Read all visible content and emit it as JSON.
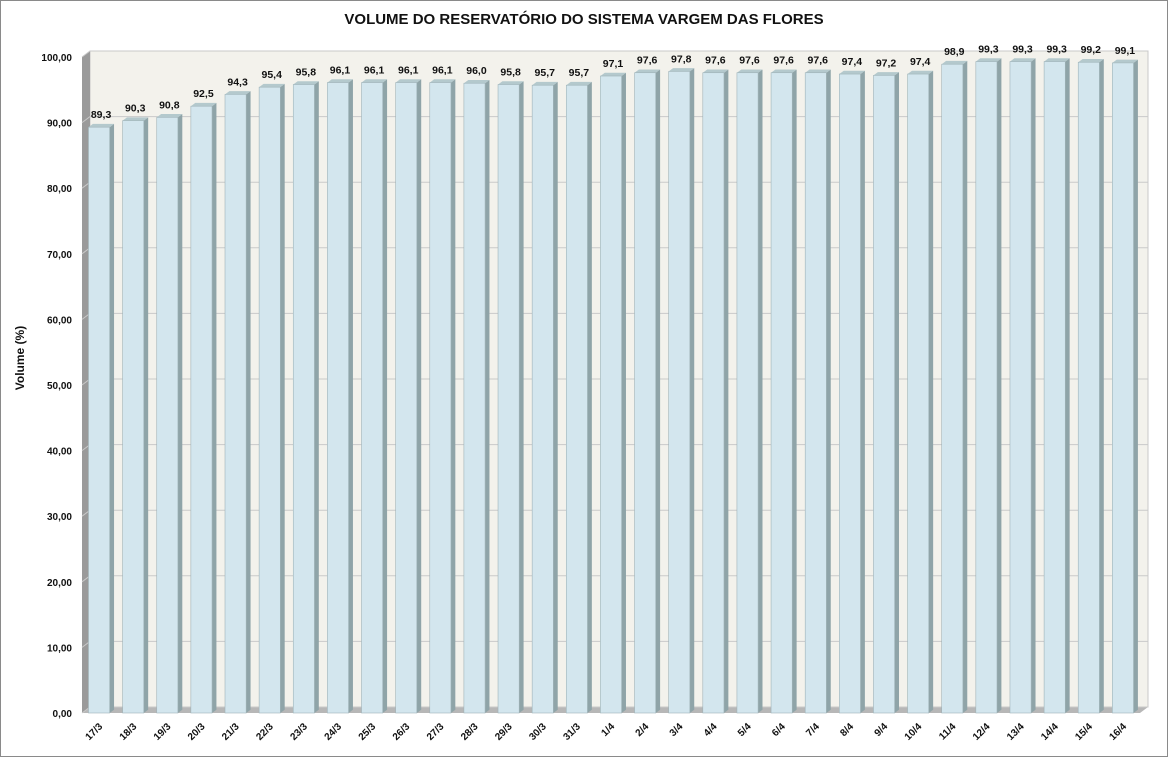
{
  "chart_data": {
    "type": "bar",
    "title": "VOLUME DO RESERVATÓRIO DO SISTEMA VARGEM DAS FLORES",
    "xlabel": "",
    "ylabel": "Volume (%)",
    "ylim": [
      0,
      100
    ],
    "yticks": [
      "0,00",
      "10,00",
      "20,00",
      "30,00",
      "40,00",
      "50,00",
      "60,00",
      "70,00",
      "80,00",
      "90,00",
      "100,00"
    ],
    "categories": [
      "17/3",
      "18/3",
      "19/3",
      "20/3",
      "21/3",
      "22/3",
      "23/3",
      "24/3",
      "25/3",
      "26/3",
      "27/3",
      "28/3",
      "29/3",
      "30/3",
      "31/3",
      "1/4",
      "2/4",
      "3/4",
      "4/4",
      "5/4",
      "6/4",
      "7/4",
      "8/4",
      "9/4",
      "10/4",
      "11/4",
      "12/4",
      "13/4",
      "14/4",
      "15/4",
      "16/4"
    ],
    "values": [
      89.3,
      90.3,
      90.8,
      92.5,
      94.3,
      95.4,
      95.8,
      96.1,
      96.1,
      96.1,
      96.1,
      96.0,
      95.8,
      95.7,
      95.7,
      97.1,
      97.6,
      97.8,
      97.6,
      97.6,
      97.6,
      97.6,
      97.4,
      97.2,
      97.4,
      98.9,
      99.3,
      99.3,
      99.3,
      99.2,
      99.1
    ],
    "data_labels": [
      "89,3",
      "90,3",
      "90,8",
      "92,5",
      "94,3",
      "95,4",
      "95,8",
      "96,1",
      "96,1",
      "96,1",
      "96,1",
      "96,0",
      "95,8",
      "95,7",
      "95,7",
      "97,1",
      "97,6",
      "97,8",
      "97,6",
      "97,6",
      "97,6",
      "97,6",
      "97,4",
      "97,2",
      "97,4",
      "98,9",
      "99,3",
      "99,3",
      "99,3",
      "99,2",
      "99,1"
    ],
    "grid": true,
    "legend": "none",
    "colors": {
      "bar_front": "#d3e6ee",
      "bar_side": "#8fa4a8",
      "bar_top": "#b4c9cd",
      "plot_back": "#f3f2ec",
      "plot_floor": "#b7b7b7",
      "plot_side_wall": "#9a9a9a",
      "gridline": "#c9c9c9"
    }
  }
}
